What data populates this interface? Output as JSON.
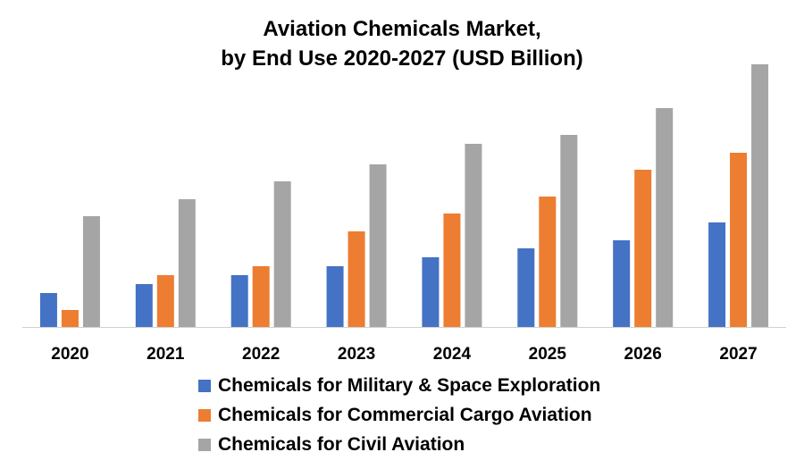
{
  "chart_data": {
    "type": "bar",
    "title": "Aviation Chemicals Market,\nby End Use 2020-2027 (USD Billion)",
    "title_lines": [
      "Aviation Chemicals Market,",
      "by End Use 2020-2027 (USD Billion)"
    ],
    "xlabel": "",
    "ylabel": "",
    "categories": [
      "2020",
      "2021",
      "2022",
      "2023",
      "2024",
      "2025",
      "2026",
      "2027"
    ],
    "series": [
      {
        "name": "Chemicals for Military & Space Exploration",
        "color": "#4472C4",
        "values": [
          3.8,
          4.8,
          5.8,
          6.8,
          7.8,
          8.8,
          9.7,
          11.7
        ]
      },
      {
        "name": "Chemicals for Commercial Cargo Aviation",
        "color": "#ED7D31",
        "values": [
          1.9,
          5.8,
          6.8,
          10.7,
          12.7,
          14.6,
          17.6,
          19.5
        ]
      },
      {
        "name": "Chemicals for Civil Aviation",
        "color": "#A5A5A5",
        "values": [
          12.4,
          14.3,
          16.3,
          18.2,
          20.5,
          21.5,
          24.5,
          29.4
        ]
      }
    ],
    "ylim": [
      0,
      30
    ],
    "y_axis_visible": false,
    "grid": false,
    "legend_position": "bottom"
  }
}
